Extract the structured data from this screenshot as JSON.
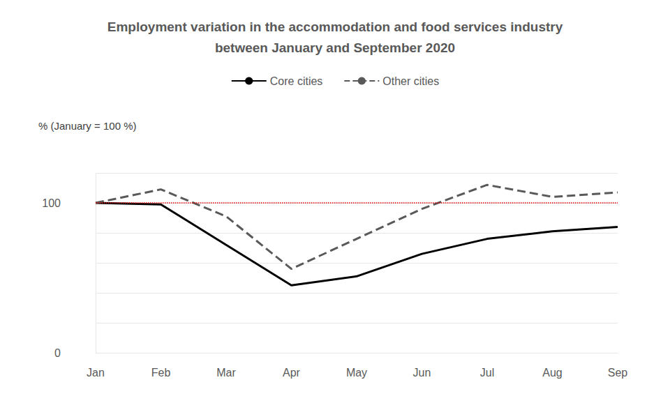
{
  "chart_data": {
    "type": "line",
    "title": "Employment variation in the accommodation and food services industry\nbetween January and September 2020",
    "y_label": "% (January = 100 %)",
    "categories": [
      "Jan",
      "Feb",
      "Mar",
      "Apr",
      "May",
      "Jun",
      "Jul",
      "Aug",
      "Sep"
    ],
    "series": [
      {
        "name": "Core cities",
        "color": "#000000",
        "line_style": "solid",
        "marker": "none",
        "values": [
          100,
          99,
          72,
          45,
          51,
          66,
          76,
          81,
          84
        ]
      },
      {
        "name": "Other cities",
        "color": "#595959",
        "line_style": "dashed",
        "marker": "none",
        "values": [
          100,
          109,
          91,
          56,
          76,
          96,
          112,
          104,
          107
        ]
      }
    ],
    "baseline": 100,
    "ylim": [
      0,
      120
    ],
    "yticks": [
      0,
      100
    ],
    "grid": true,
    "legend": "top"
  }
}
